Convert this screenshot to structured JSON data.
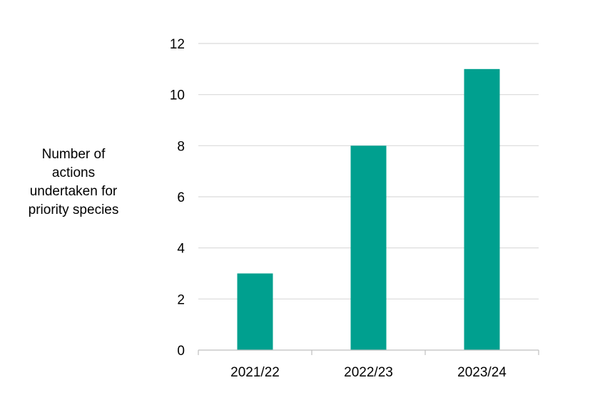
{
  "chart_data": {
    "type": "bar",
    "title": "",
    "xlabel": "",
    "ylabel": "Number of actions undertaken for priority species",
    "ylabel_lines": [
      "Number of",
      "actions",
      "undertaken for",
      "priority species"
    ],
    "categories": [
      "2021/22",
      "2022/23",
      "2023/24"
    ],
    "values": [
      3,
      8,
      11
    ],
    "ylim": [
      0,
      12
    ],
    "yticks": [
      0,
      2,
      4,
      6,
      8,
      10,
      12
    ],
    "grid": true,
    "legend": "none",
    "bar_color": "#00a08f"
  }
}
